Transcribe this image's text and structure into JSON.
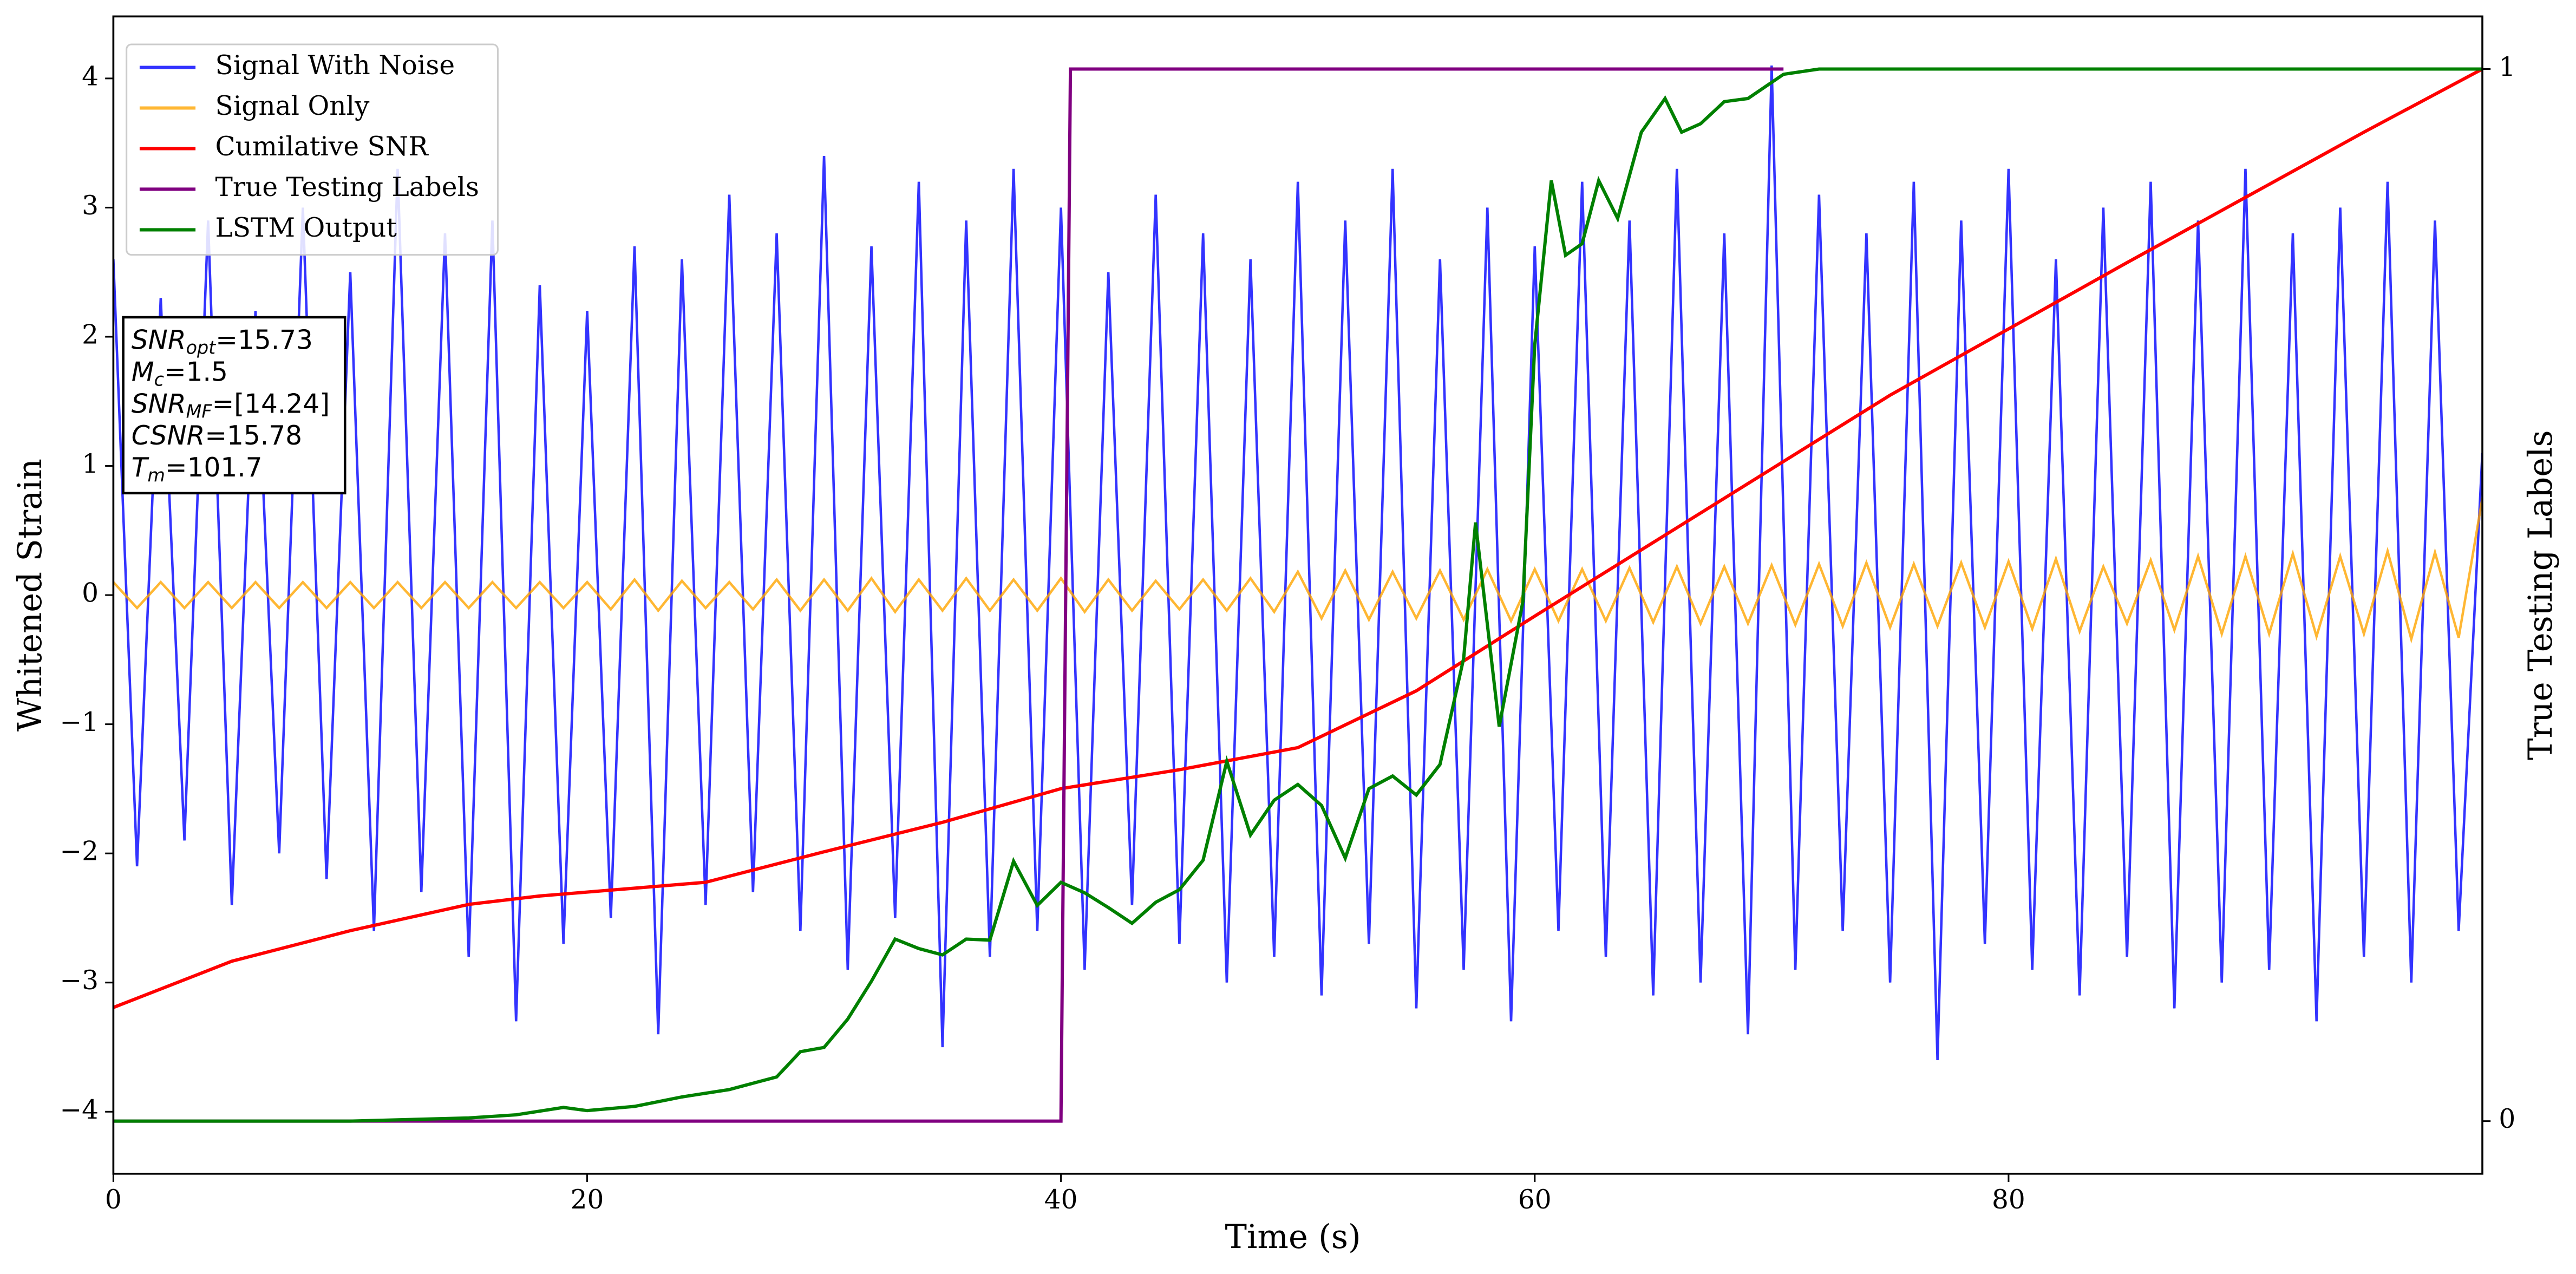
{
  "chart_data": {
    "type": "line",
    "xlabel": "Time (s)",
    "ylabel": "Whitened Strain",
    "y2label": "True Testing Labels",
    "xlim": [
      0,
      100
    ],
    "ylim": [
      -4.48,
      4.48
    ],
    "y2lim": [
      -0.05,
      1.05
    ],
    "xticks": [
      0,
      20,
      40,
      60,
      80
    ],
    "yticks": [
      {
        "value": -4,
        "label": "−4"
      },
      {
        "value": -3,
        "label": "−3"
      },
      {
        "value": -2,
        "label": "−2"
      },
      {
        "value": -1,
        "label": "−1"
      },
      0,
      1,
      2,
      3,
      4
    ],
    "y2ticks": [
      0,
      1
    ],
    "grid": false,
    "legend": "upper left",
    "x": [
      0,
      1,
      2,
      3,
      4,
      5,
      6,
      7,
      8,
      9,
      10,
      11,
      12,
      13,
      14,
      15,
      16,
      17,
      18,
      19,
      20,
      21,
      22,
      23,
      24,
      25,
      26,
      27,
      28,
      29,
      30,
      31,
      32,
      33,
      34,
      35,
      36,
      37,
      38,
      39,
      40,
      41,
      42,
      43,
      44,
      45,
      46,
      47,
      48,
      49,
      50,
      51,
      52,
      53,
      54,
      55,
      56,
      57,
      58,
      59,
      60,
      61,
      62,
      63,
      64,
      65,
      66,
      67,
      68,
      69,
      70,
      71,
      72,
      73,
      74,
      75,
      76,
      77,
      78,
      79,
      80,
      81,
      82,
      83,
      84,
      85,
      86,
      87,
      88,
      89,
      90,
      91,
      92,
      93,
      94,
      95,
      96,
      97,
      98,
      99,
      100
    ],
    "series": [
      {
        "name": "Signal With Noise",
        "color": "#0000ff",
        "values": [
          2.6,
          -2.1,
          2.3,
          -1.9,
          2.9,
          -2.4,
          2.2,
          -2.0,
          3.0,
          -2.2,
          2.5,
          -2.6,
          3.3,
          -2.3,
          2.8,
          -2.8,
          2.9,
          -3.3,
          2.4,
          -2.7,
          2.2,
          -2.5,
          2.7,
          -3.4,
          2.6,
          -2.4,
          3.1,
          -2.3,
          2.8,
          -2.6,
          3.4,
          -2.9,
          2.7,
          -2.5,
          3.2,
          -3.5,
          2.9,
          -2.8,
          3.3,
          -2.6,
          3.0,
          -2.9,
          2.5,
          -2.4,
          3.1,
          -2.7,
          2.8,
          -3.0,
          2.6,
          -2.8,
          3.2,
          -3.1,
          2.9,
          -2.7,
          3.3,
          -3.2,
          2.6,
          -2.9,
          3.0,
          -3.3,
          2.7,
          -2.6,
          3.2,
          -2.8,
          2.9,
          -3.1,
          3.3,
          -3.0,
          2.8,
          -3.4,
          4.1,
          -2.9,
          3.1,
          -2.6,
          2.8,
          -3.0,
          3.2,
          -3.6,
          2.9,
          -2.7,
          3.3,
          -2.9,
          2.6,
          -3.1,
          3.0,
          -2.8,
          3.2,
          -3.2,
          2.9,
          -3.0,
          3.3,
          -2.9,
          2.8,
          -3.3,
          3.0,
          -2.8,
          3.2,
          -3.0,
          2.9,
          -2.6,
          1.1
        ]
      },
      {
        "name": "Signal Only",
        "color": "#ffa500",
        "values": [
          0.1,
          -0.1,
          0.1,
          -0.1,
          0.1,
          -0.1,
          0.1,
          -0.1,
          0.1,
          -0.1,
          0.1,
          -0.1,
          0.1,
          -0.1,
          0.1,
          -0.1,
          0.1,
          -0.1,
          0.1,
          -0.1,
          0.1,
          -0.11,
          0.12,
          -0.12,
          0.11,
          -0.1,
          0.1,
          -0.11,
          0.12,
          -0.12,
          0.12,
          -0.12,
          0.13,
          -0.13,
          0.12,
          -0.12,
          0.13,
          -0.12,
          0.12,
          -0.12,
          0.13,
          -0.13,
          0.12,
          -0.12,
          0.11,
          -0.11,
          0.12,
          -0.12,
          0.13,
          -0.13,
          0.18,
          -0.18,
          0.19,
          -0.19,
          0.18,
          -0.18,
          0.19,
          -0.19,
          0.2,
          -0.2,
          0.2,
          -0.2,
          0.2,
          -0.2,
          0.21,
          -0.21,
          0.22,
          -0.22,
          0.22,
          -0.22,
          0.23,
          -0.23,
          0.24,
          -0.24,
          0.25,
          -0.25,
          0.24,
          -0.24,
          0.25,
          -0.25,
          0.26,
          -0.26,
          0.28,
          -0.28,
          0.22,
          -0.22,
          0.27,
          -0.27,
          0.3,
          -0.3,
          0.3,
          -0.3,
          0.32,
          -0.32,
          0.3,
          -0.3,
          0.34,
          -0.34,
          0.33,
          -0.33,
          0.75
        ]
      },
      {
        "name": "Cumilative SNR",
        "color": "#ff0000",
        "axis": "y2",
        "x": [
          0,
          5,
          10,
          15,
          18,
          25,
          30,
          35,
          40,
          45,
          50,
          55,
          60,
          65,
          70,
          75,
          80,
          85,
          90,
          95,
          100
        ],
        "values": [
          0.108,
          0.152,
          0.181,
          0.206,
          0.214,
          0.227,
          0.256,
          0.284,
          0.316,
          0.334,
          0.355,
          0.409,
          0.48,
          0.55,
          0.62,
          0.69,
          0.753,
          0.816,
          0.878,
          0.94,
          1.0
        ]
      },
      {
        "name": "True Testing Labels",
        "color": "#800080",
        "axis": "y2",
        "x": [
          0,
          40,
          40.4,
          70.5
        ],
        "values": [
          0,
          0,
          1,
          1
        ]
      },
      {
        "name": "LSTM Output",
        "color": "#008000",
        "axis": "y2",
        "x": [
          0,
          10,
          15,
          17,
          19,
          20,
          22,
          24,
          26,
          28,
          29,
          30,
          31,
          32,
          33,
          34,
          35,
          36,
          37,
          38,
          39,
          40,
          41,
          42,
          43,
          44,
          45,
          46,
          47,
          48,
          49,
          50,
          51,
          52,
          53,
          54,
          55,
          56,
          57,
          57.5,
          58.5,
          59.5,
          60,
          60.7,
          61.3,
          62,
          62.7,
          63.5,
          64.5,
          65.5,
          66.2,
          67,
          68,
          69,
          70.5,
          72,
          100
        ],
        "values": [
          0,
          0,
          0.003,
          0.006,
          0.013,
          0.01,
          0.014,
          0.023,
          0.03,
          0.042,
          0.066,
          0.07,
          0.097,
          0.133,
          0.173,
          0.164,
          0.158,
          0.173,
          0.172,
          0.247,
          0.205,
          0.227,
          0.217,
          0.203,
          0.188,
          0.208,
          0.22,
          0.248,
          0.342,
          0.272,
          0.305,
          0.32,
          0.3,
          0.25,
          0.316,
          0.328,
          0.31,
          0.339,
          0.44,
          0.569,
          0.375,
          0.494,
          0.738,
          0.894,
          0.823,
          0.834,
          0.894,
          0.858,
          0.94,
          0.972,
          0.94,
          0.948,
          0.969,
          0.972,
          0.995,
          1,
          1
        ]
      }
    ],
    "annotations": [
      {
        "base": "SNR",
        "sub": "opt",
        "text": "=15.73"
      },
      {
        "base": "M",
        "sub": "c",
        "text": "=1.5"
      },
      {
        "base": "SNR",
        "sub": "MF",
        "text": "=[14.24]"
      },
      {
        "base": "CSNR",
        "text": "=15.78"
      },
      {
        "base": "T",
        "sub": "m",
        "text": "=101.7"
      }
    ]
  }
}
